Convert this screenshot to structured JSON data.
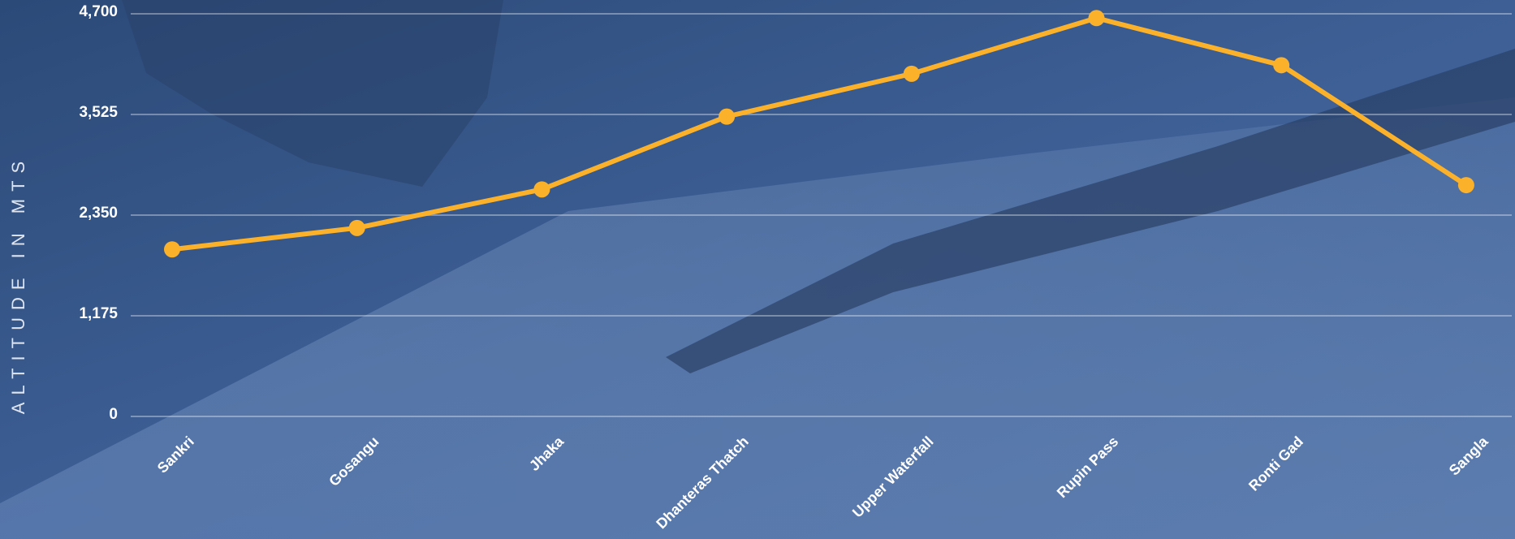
{
  "chart_data": {
    "type": "line",
    "y_label": "ALTITUDE IN MTS",
    "categories": [
      "Sankri",
      "Gosangu",
      "Jhaka",
      "Dhanteras Thatch",
      "Upper Waterfall",
      "Rupin Pass",
      "Ronti Gad",
      "Sangla"
    ],
    "values": [
      1950,
      2200,
      2650,
      3500,
      4000,
      4650,
      4100,
      2700
    ],
    "color": "#fbb12a",
    "ylim": [
      0,
      4700
    ],
    "yticks": [
      0,
      {
        "value": 1175,
        "label": "1,175"
      },
      {
        "value": 2350,
        "label": "2,350"
      },
      {
        "value": 3525,
        "label": "3,525"
      },
      {
        "value": 4700,
        "label": "4,700"
      }
    ],
    "grid": true
  }
}
